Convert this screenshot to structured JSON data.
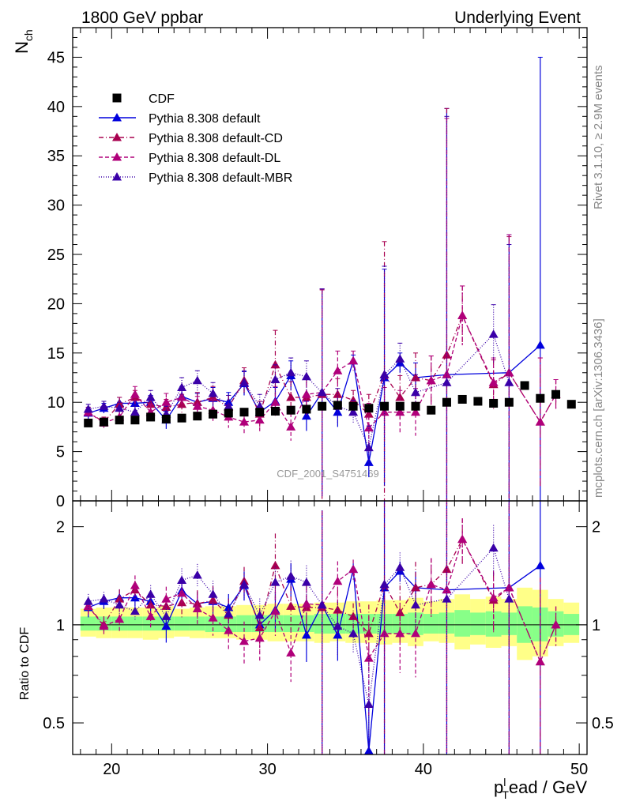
{
  "header": {
    "left_title": "1800 GeV ppbar",
    "right_title": "Underlying Event"
  },
  "side": {
    "rivet": "Rivet 3.1.10, ≥ 2.9M events",
    "mcplots": "mcplots.cern.ch [arXiv:1306.3436]"
  },
  "watermark": "CDF_2001_S4751469",
  "colors": {
    "cdf": "#000000",
    "default": "#0000dd",
    "cd": "#a8004f",
    "dl": "#b0007a",
    "mbr": "#3a00a8",
    "band_yellow": "#ffff88",
    "band_green": "#88ff88"
  },
  "chart_data": [
    {
      "id": "main",
      "type": "scatter",
      "ylabel": "N",
      "ylabel_sub": "ch",
      "xlim": [
        17.5,
        50.5
      ],
      "ylim": [
        0,
        48
      ],
      "yticks": [
        0,
        5,
        10,
        15,
        20,
        25,
        30,
        35,
        40,
        45
      ],
      "legend_placement": "top-left",
      "series": [
        {
          "name": "CDF",
          "x": [
            18.5,
            19.5,
            20.5,
            21.5,
            22.5,
            23.5,
            24.5,
            25.5,
            26.5,
            27.5,
            28.5,
            29.5,
            30.5,
            31.5,
            32.5,
            33.5,
            34.5,
            35.5,
            36.5,
            37.5,
            38.5,
            39.5,
            40.5,
            41.5,
            42.5,
            43.5,
            44.5,
            45.5,
            46.5,
            47.5,
            48.5,
            49.5
          ],
          "y": [
            7.9,
            8.0,
            8.2,
            8.2,
            8.5,
            8.3,
            8.4,
            8.6,
            8.8,
            8.9,
            9.0,
            9.0,
            9.1,
            9.2,
            9.3,
            9.6,
            9.7,
            9.6,
            9.4,
            9.6,
            9.6,
            9.6,
            9.2,
            10.0,
            10.3,
            10.1,
            9.9,
            10.0,
            11.7,
            10.4,
            10.8,
            9.8
          ]
        },
        {
          "name": "Pythia 8.308 default",
          "x": [
            18.5,
            19.5,
            20.5,
            21.5,
            22.5,
            23.5,
            24.5,
            25.5,
            26.5,
            27.5,
            28.5,
            29.5,
            30.5,
            31.5,
            32.5,
            33.5,
            34.5,
            35.5,
            36.5,
            37.5,
            38.5,
            39.5,
            41.5,
            45.5,
            47.5
          ],
          "y": [
            8.9,
            9.4,
            9.9,
            9.9,
            10.0,
            8.2,
            10.6,
            10.0,
            10.4,
            10.0,
            11.9,
            9.0,
            10.1,
            12.7,
            8.6,
            11.0,
            9.0,
            14.2,
            3.9,
            12.5,
            14.0,
            12.5,
            12.8,
            13.0,
            15.8
          ],
          "err": [
            0.6,
            0.5,
            0.6,
            0.6,
            0.7,
            0.9,
            1.0,
            0.9,
            1.1,
            1.0,
            1.2,
            1.1,
            1.4,
            1.5,
            1.5,
            10.5,
            1.5,
            0.6,
            1.5,
            11.0,
            1.0,
            1.5,
            27.0,
            14.0,
            29.2
          ]
        },
        {
          "name": "Pythia 8.308 default-CD",
          "x": [
            18.5,
            19.5,
            20.5,
            21.5,
            22.5,
            23.5,
            24.5,
            25.5,
            26.5,
            27.5,
            28.5,
            29.5,
            30.5,
            31.5,
            32.5,
            33.5,
            34.5,
            35.5,
            36.5,
            37.5,
            38.5,
            39.5,
            40.5,
            41.5,
            42.5,
            44.5,
            45.5,
            47.5,
            48.5
          ],
          "y": [
            9.0,
            8.0,
            9.8,
            10.5,
            9.8,
            9.5,
            9.8,
            10.0,
            10.5,
            9.5,
            12.2,
            8.8,
            13.8,
            10.5,
            10.5,
            10.8,
            10.8,
            10.2,
            8.8,
            12.8,
            10.5,
            12.5,
            12.2,
            14.8,
            18.8,
            11.8,
            13.0,
            8.0,
            10.8
          ],
          "err": [
            0.5,
            0.5,
            0.7,
            0.7,
            0.8,
            0.8,
            1.0,
            1.0,
            1.1,
            1.2,
            1.3,
            1.3,
            3.5,
            1.6,
            1.8,
            10.6,
            1.6,
            1.0,
            2.0,
            13.5,
            2.2,
            2.5,
            2.5,
            25.0,
            3.0,
            2.5,
            13.8,
            6.5,
            1.5
          ]
        },
        {
          "name": "Pythia 8.308 default-DL",
          "x": [
            18.5,
            19.5,
            20.5,
            21.5,
            22.5,
            23.5,
            24.5,
            25.5,
            26.5,
            27.5,
            28.5,
            29.5,
            30.5,
            31.5,
            32.5,
            33.5,
            34.5,
            35.5,
            36.5,
            37.5,
            38.5,
            39.5,
            40.5,
            41.5,
            42.5,
            44.5,
            45.5,
            47.5,
            48.5
          ],
          "y": [
            9.0,
            7.9,
            8.5,
            10.8,
            9.0,
            10.0,
            10.5,
            9.6,
            9.2,
            8.5,
            8.0,
            8.2,
            10.0,
            7.5,
            10.8,
            11.0,
            13.2,
            14.2,
            7.4,
            9.0,
            9.0,
            9.0,
            12.2,
            12.8,
            18.8,
            12.0,
            13.0,
            8.0,
            10.8
          ],
          "err": [
            0.5,
            0.5,
            0.7,
            0.8,
            0.8,
            0.9,
            1.0,
            1.0,
            1.1,
            1.1,
            1.2,
            1.2,
            1.6,
            1.4,
            1.8,
            10.5,
            2.0,
            1.0,
            2.5,
            2.5,
            2.2,
            2.4,
            2.5,
            26.0,
            3.0,
            2.5,
            14.0,
            6.5,
            1.5
          ]
        },
        {
          "name": "Pythia 8.308 default-MBR",
          "x": [
            18.5,
            19.5,
            20.5,
            21.5,
            22.5,
            23.5,
            24.5,
            25.5,
            26.5,
            27.5,
            28.5,
            29.5,
            30.5,
            31.5,
            32.5,
            33.5,
            34.5,
            35.5,
            36.5,
            37.5,
            38.5,
            39.5,
            41.5,
            44.5,
            45.5
          ],
          "y": [
            9.3,
            9.6,
            9.4,
            9.0,
            10.5,
            8.8,
            11.5,
            12.2,
            10.9,
            9.6,
            12.0,
            9.6,
            12.3,
            13.0,
            12.6,
            11.0,
            9.6,
            9.0,
            5.4,
            12.8,
            14.4,
            11.0,
            12.0,
            16.9,
            12.0
          ],
          "err": [
            0.5,
            0.5,
            0.6,
            0.6,
            0.7,
            0.8,
            1.0,
            1.0,
            1.1,
            1.1,
            1.2,
            1.2,
            1.5,
            1.5,
            1.6,
            10.5,
            1.8,
            1.2,
            2.2,
            11.0,
            1.6,
            1.8,
            27.0,
            3.0,
            14.0
          ]
        }
      ]
    },
    {
      "id": "ratio",
      "type": "scatter",
      "xlabel": "p",
      "xlabel_sub": "T",
      "xlabel_sup": "l",
      "xlabel_rest": "ead / GeV",
      "ylabel": "Ratio to CDF",
      "yscale": "log",
      "xlim": [
        17.5,
        50.5
      ],
      "ylim": [
        0.4,
        2.4
      ],
      "yticks": [
        0.5,
        1,
        2
      ],
      "xticks": [
        20,
        30,
        40,
        50
      ],
      "bands": {
        "x": [
          18.5,
          19.5,
          20.5,
          21.5,
          22.5,
          23.5,
          24.5,
          25.5,
          26.5,
          27.5,
          28.5,
          29.5,
          30.5,
          31.5,
          32.5,
          33.5,
          34.5,
          35.5,
          36.5,
          37.5,
          38.5,
          39.5,
          40.5,
          41.5,
          42.5,
          43.5,
          44.5,
          45.5,
          46.5,
          47.5,
          48.5,
          49.5
        ],
        "yellow": [
          [
            0.92,
            1.12
          ],
          [
            0.91,
            1.13
          ],
          [
            0.91,
            1.13
          ],
          [
            0.91,
            1.13
          ],
          [
            0.9,
            1.13
          ],
          [
            0.91,
            1.14
          ],
          [
            0.92,
            1.12
          ],
          [
            0.91,
            1.13
          ],
          [
            0.91,
            1.14
          ],
          [
            0.91,
            1.14
          ],
          [
            0.9,
            1.15
          ],
          [
            0.9,
            1.15
          ],
          [
            0.89,
            1.16
          ],
          [
            0.89,
            1.16
          ],
          [
            0.89,
            1.16
          ],
          [
            0.88,
            1.17
          ],
          [
            0.89,
            1.17
          ],
          [
            0.88,
            1.18
          ],
          [
            0.88,
            1.18
          ],
          [
            0.87,
            1.19
          ],
          [
            0.88,
            1.19
          ],
          [
            0.86,
            1.21
          ],
          [
            0.89,
            1.18
          ],
          [
            0.88,
            1.2
          ],
          [
            0.84,
            1.24
          ],
          [
            0.87,
            1.2
          ],
          [
            0.85,
            1.22
          ],
          [
            0.86,
            1.2
          ],
          [
            0.78,
            1.3
          ],
          [
            0.8,
            1.28
          ],
          [
            0.86,
            1.2
          ],
          [
            0.88,
            1.17
          ]
        ],
        "green": [
          [
            0.96,
            1.06
          ],
          [
            0.96,
            1.06
          ],
          [
            0.96,
            1.06
          ],
          [
            0.96,
            1.06
          ],
          [
            0.96,
            1.06
          ],
          [
            0.96,
            1.06
          ],
          [
            0.96,
            1.06
          ],
          [
            0.96,
            1.06
          ],
          [
            0.95,
            1.06
          ],
          [
            0.95,
            1.06
          ],
          [
            0.95,
            1.07
          ],
          [
            0.95,
            1.07
          ],
          [
            0.95,
            1.07
          ],
          [
            0.95,
            1.07
          ],
          [
            0.95,
            1.07
          ],
          [
            0.94,
            1.08
          ],
          [
            0.94,
            1.08
          ],
          [
            0.94,
            1.08
          ],
          [
            0.94,
            1.08
          ],
          [
            0.94,
            1.08
          ],
          [
            0.94,
            1.08
          ],
          [
            0.93,
            1.09
          ],
          [
            0.94,
            1.08
          ],
          [
            0.94,
            1.09
          ],
          [
            0.92,
            1.11
          ],
          [
            0.93,
            1.09
          ],
          [
            0.92,
            1.1
          ],
          [
            0.93,
            1.09
          ],
          [
            0.88,
            1.14
          ],
          [
            0.89,
            1.13
          ],
          [
            0.92,
            1.1
          ],
          [
            0.93,
            1.08
          ]
        ]
      },
      "series": [
        {
          "name": "Pythia 8.308 default",
          "x": [
            18.5,
            19.5,
            20.5,
            21.5,
            22.5,
            23.5,
            24.5,
            25.5,
            26.5,
            27.5,
            28.5,
            29.5,
            30.5,
            31.5,
            32.5,
            33.5,
            34.5,
            35.5,
            36.5,
            37.5,
            38.5,
            39.5,
            41.5,
            45.5,
            47.5
          ],
          "y": [
            1.13,
            1.18,
            1.21,
            1.21,
            1.18,
            0.99,
            1.27,
            1.16,
            1.18,
            1.13,
            1.32,
            1.0,
            1.11,
            1.38,
            0.93,
            1.15,
            0.93,
            1.48,
            0.41,
            1.3,
            1.46,
            1.3,
            1.28,
            1.3,
            1.52
          ]
        },
        {
          "name": "Pythia 8.308 default-CD",
          "x": [
            18.5,
            19.5,
            20.5,
            21.5,
            22.5,
            23.5,
            24.5,
            25.5,
            26.5,
            27.5,
            28.5,
            29.5,
            30.5,
            31.5,
            32.5,
            33.5,
            34.5,
            35.5,
            36.5,
            37.5,
            38.5,
            39.5,
            40.5,
            41.5,
            42.5,
            44.5,
            45.5,
            47.5,
            48.5
          ],
          "y": [
            1.14,
            1.0,
            1.2,
            1.28,
            1.15,
            1.14,
            1.17,
            1.16,
            1.19,
            1.07,
            1.36,
            0.98,
            1.52,
            1.14,
            1.13,
            1.13,
            1.11,
            1.06,
            0.94,
            1.33,
            1.09,
            1.3,
            1.33,
            1.48,
            1.83,
            1.19,
            1.3,
            0.77,
            1.0
          ]
        },
        {
          "name": "Pythia 8.308 default-DL",
          "x": [
            18.5,
            19.5,
            20.5,
            21.5,
            22.5,
            23.5,
            24.5,
            25.5,
            26.5,
            27.5,
            28.5,
            29.5,
            30.5,
            31.5,
            32.5,
            33.5,
            34.5,
            35.5,
            36.5,
            37.5,
            38.5,
            39.5,
            40.5,
            41.5,
            42.5,
            44.5,
            45.5,
            47.5,
            48.5
          ],
          "y": [
            1.14,
            0.99,
            1.04,
            1.32,
            1.06,
            1.2,
            1.25,
            1.12,
            1.05,
            0.96,
            0.89,
            0.91,
            1.1,
            0.82,
            1.16,
            1.15,
            1.36,
            1.48,
            0.79,
            0.94,
            0.94,
            0.94,
            1.33,
            1.28,
            1.83,
            1.21,
            1.3,
            0.77,
            1.0
          ]
        },
        {
          "name": "Pythia 8.308 default-MBR",
          "x": [
            18.5,
            19.5,
            20.5,
            21.5,
            22.5,
            23.5,
            24.5,
            25.5,
            26.5,
            27.5,
            28.5,
            29.5,
            30.5,
            31.5,
            32.5,
            33.5,
            34.5,
            35.5,
            36.5,
            37.5,
            38.5,
            39.5,
            41.5,
            44.5,
            45.5
          ],
          "y": [
            1.18,
            1.2,
            1.15,
            1.1,
            1.24,
            1.06,
            1.37,
            1.42,
            1.24,
            1.08,
            1.33,
            1.07,
            1.35,
            1.41,
            1.35,
            1.15,
            0.99,
            0.94,
            0.57,
            1.33,
            1.5,
            1.15,
            1.2,
            1.72,
            1.2
          ]
        }
      ]
    }
  ]
}
